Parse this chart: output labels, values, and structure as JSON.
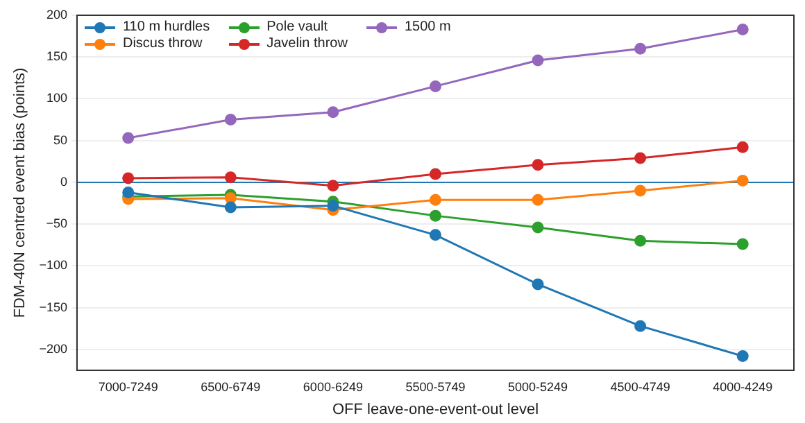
{
  "chart_data": {
    "type": "line",
    "xlabel": "OFF leave-one-event-out level",
    "ylabel": "FDM-40N centred event bias (points)",
    "categories": [
      "7000-7249",
      "6500-6749",
      "6000-6249",
      "5500-5749",
      "5000-5249",
      "4500-4749",
      "4000-4249"
    ],
    "series": [
      {
        "name": "110 m hurdles",
        "color": "#1f77b4",
        "values": [
          -12,
          -30,
          -28,
          -63,
          -122,
          -172,
          -208
        ]
      },
      {
        "name": "Discus throw",
        "color": "#ff7f0e",
        "values": [
          -20,
          -19,
          -33,
          -21,
          -21,
          -10,
          2
        ]
      },
      {
        "name": "Pole vault",
        "color": "#2ca02c",
        "values": [
          -17,
          -15,
          -23,
          -40,
          -54,
          -70,
          -74
        ]
      },
      {
        "name": "Javelin throw",
        "color": "#d62728",
        "values": [
          5,
          6,
          -4,
          10,
          21,
          29,
          42
        ]
      },
      {
        "name": "1500 m",
        "color": "#9467bd",
        "values": [
          53,
          75,
          84,
          115,
          146,
          160,
          183
        ]
      }
    ],
    "ylim": [
      -225,
      200
    ],
    "yticks": [
      -200,
      -150,
      -100,
      -50,
      0,
      50,
      100,
      150,
      200
    ],
    "ref_lines": [
      {
        "axis": "y",
        "value": 0,
        "color": "#1f77b4"
      }
    ],
    "grid": "y",
    "legend": "top left",
    "marker": "circle",
    "line_style": "solid"
  }
}
